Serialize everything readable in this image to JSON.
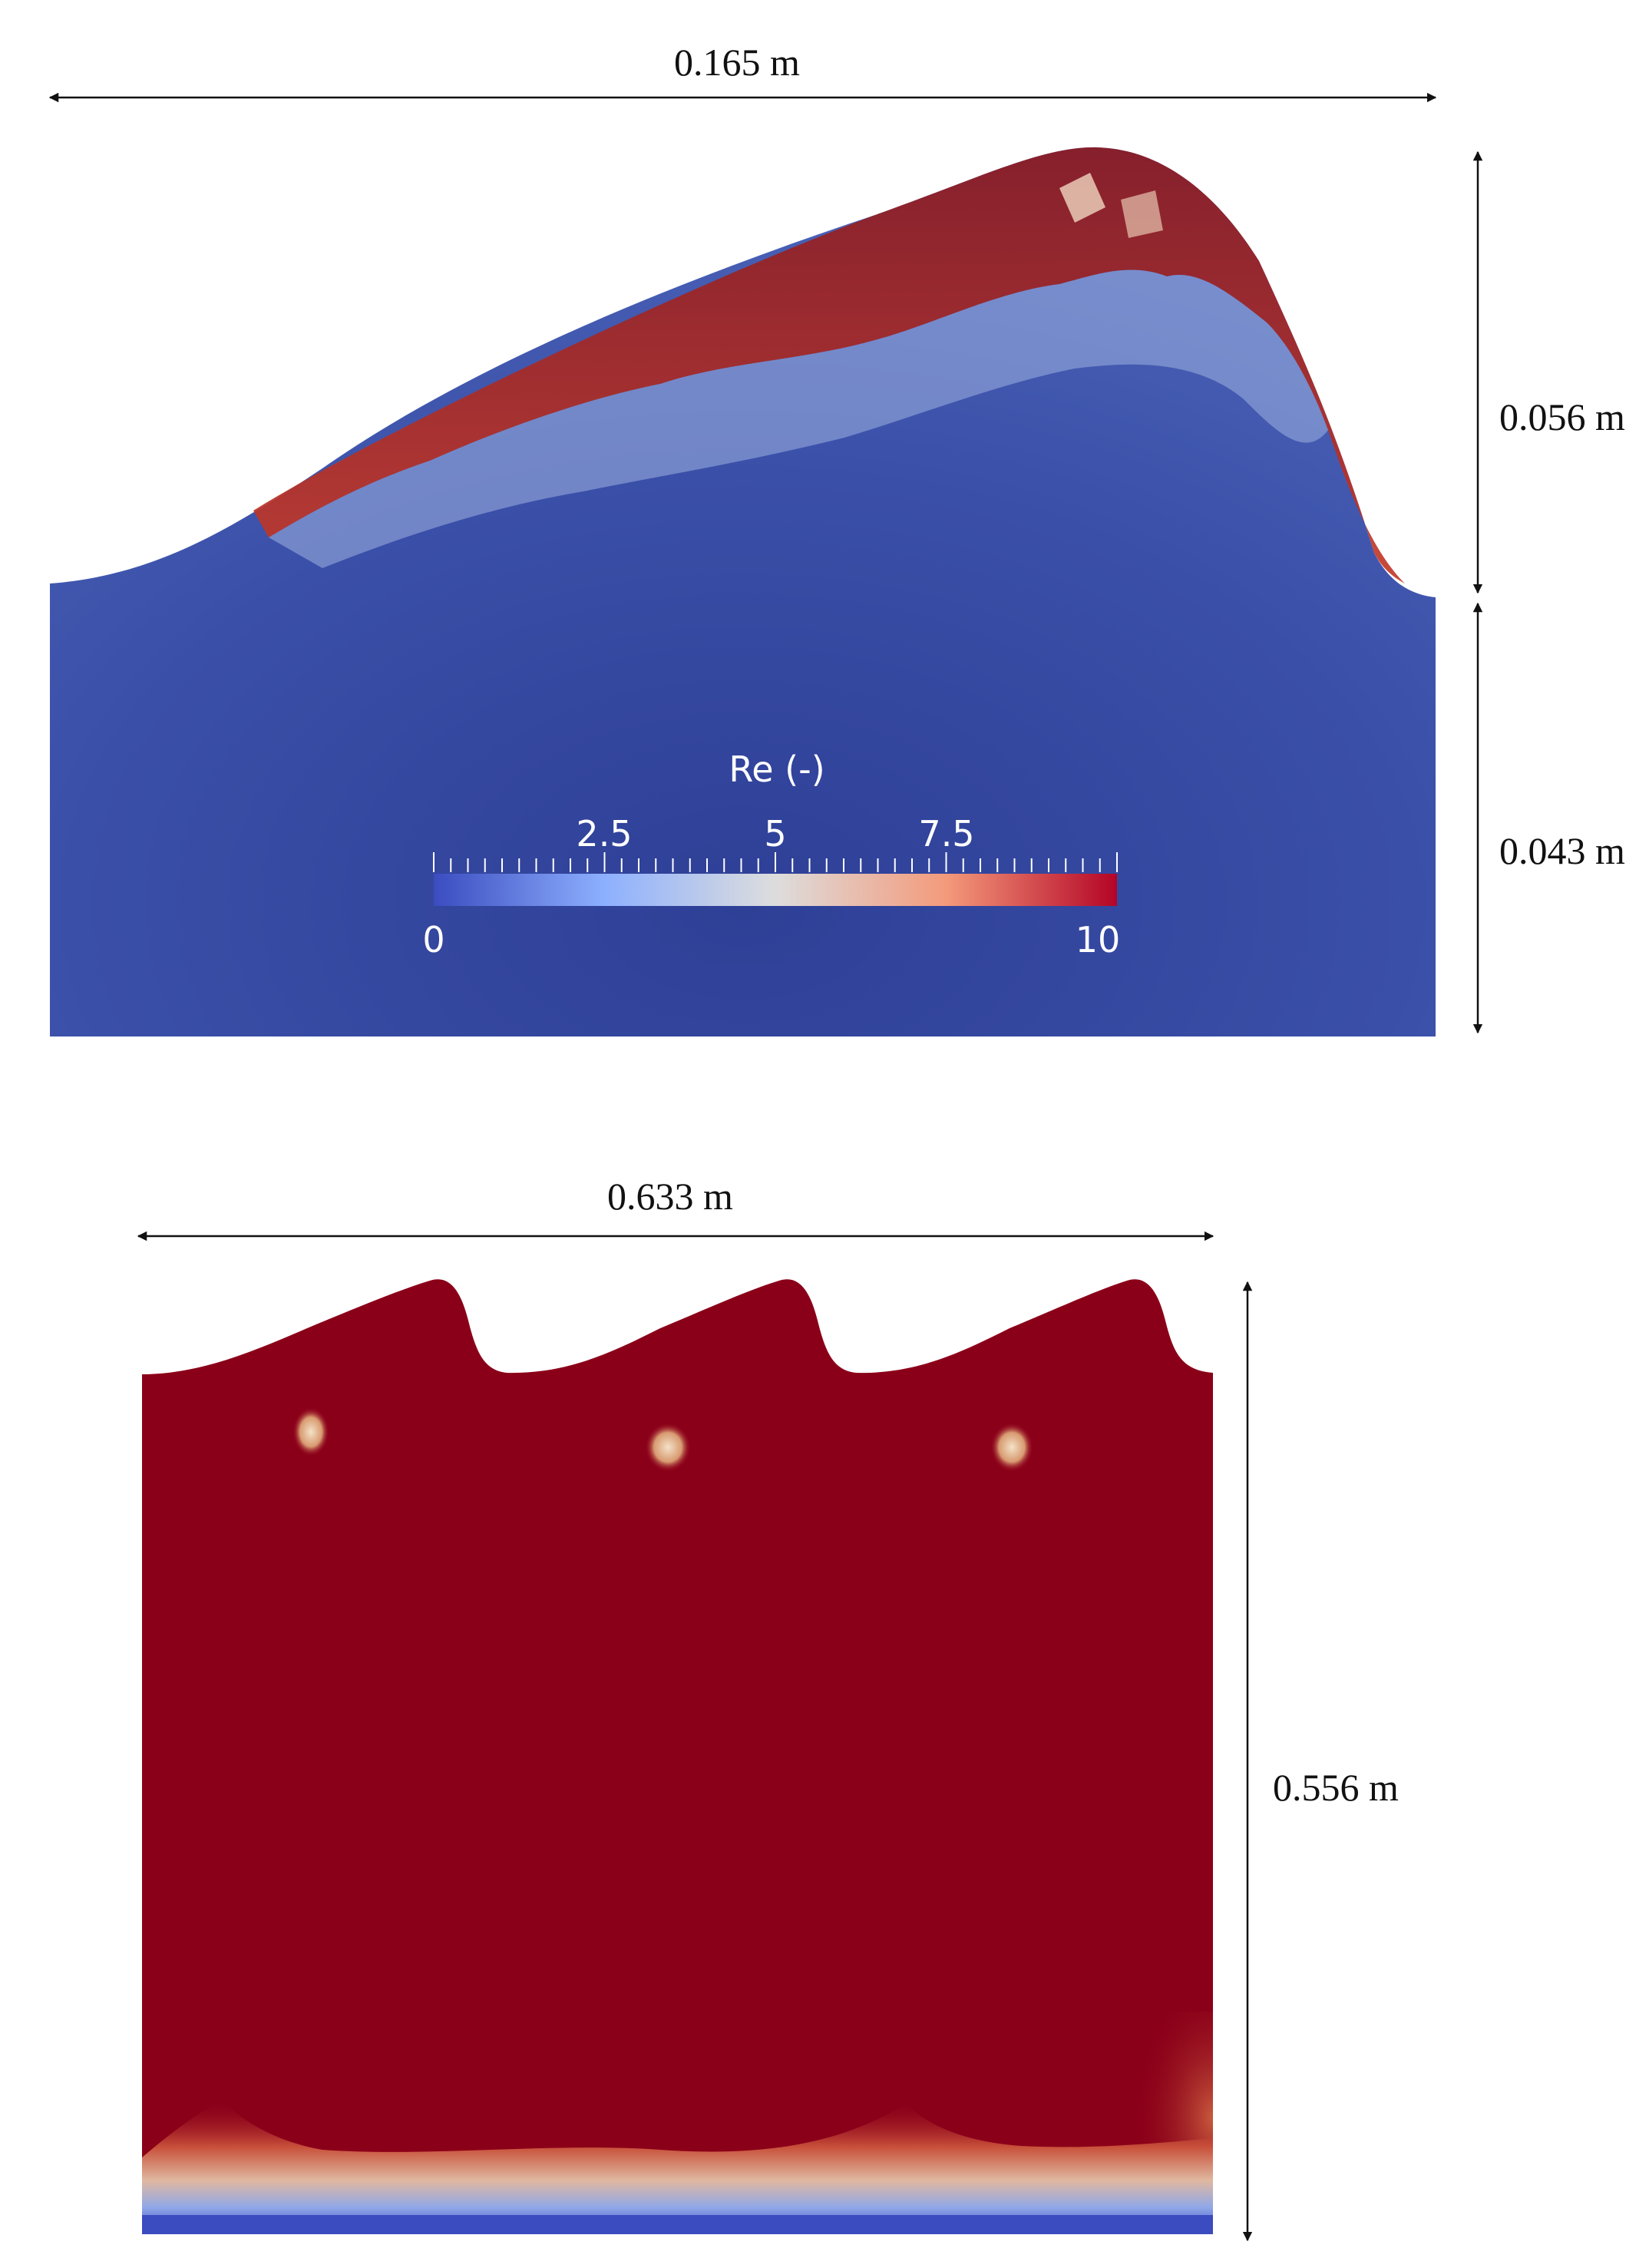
{
  "top_panel": {
    "width_label": "0.165 m",
    "crest_height_label": "0.056 m",
    "base_height_label": "0.043 m",
    "colorbar": {
      "title": "Re (-)",
      "tick_labels_top": [
        "2.5",
        "5",
        "7.5"
      ],
      "min_label": "0",
      "max_label": "10",
      "range": [
        0,
        10
      ],
      "colors": [
        "#3b4cc0",
        "#8db0fe",
        "#dddddd",
        "#f49a7b",
        "#b40426"
      ]
    }
  },
  "bottom_panel": {
    "width_label": "0.633 m",
    "height_label": "0.556 m"
  },
  "colors": {
    "low": "#3b4cc0",
    "body_blue": "#3a4fa3",
    "high": "#8b0019",
    "arrow": "#111111"
  }
}
